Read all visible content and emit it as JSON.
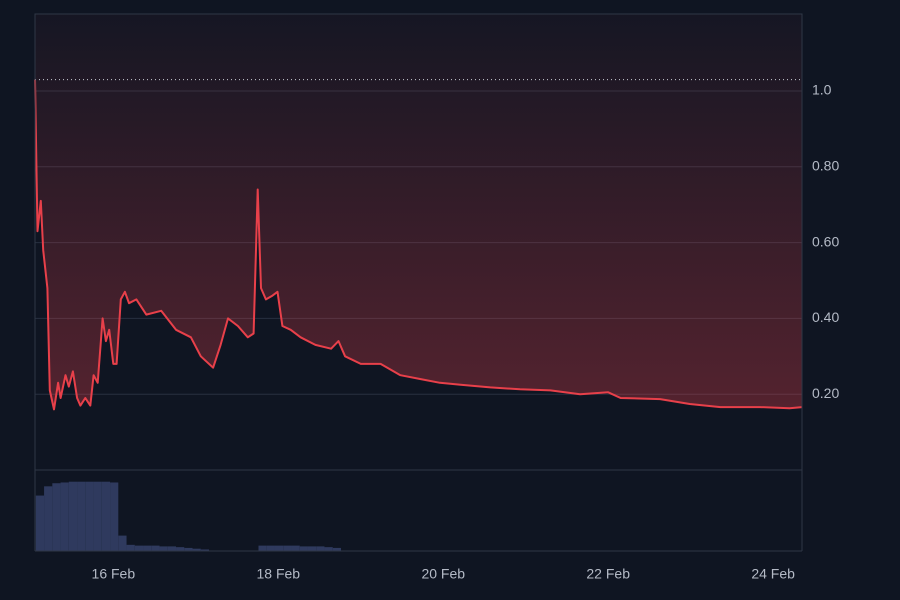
{
  "chart_data": {
    "type": "line",
    "x": [
      15.05,
      15.08,
      15.12,
      15.15,
      15.2,
      15.23,
      15.28,
      15.33,
      15.36,
      15.42,
      15.46,
      15.51,
      15.56,
      15.6,
      15.66,
      15.72,
      15.76,
      15.81,
      15.87,
      15.91,
      15.95,
      16.0,
      16.04,
      16.09,
      16.14,
      16.19,
      16.28,
      16.4,
      16.58,
      16.76,
      16.94,
      17.06,
      17.21,
      17.3,
      17.39,
      17.51,
      17.63,
      17.7,
      17.75,
      17.79,
      17.85,
      17.93,
      17.99,
      18.05,
      18.15,
      18.27,
      18.45,
      18.64,
      18.73,
      18.81,
      19.0,
      19.24,
      19.48,
      19.72,
      19.96,
      20.21,
      20.57,
      20.93,
      21.3,
      21.66,
      22.0,
      22.15,
      22.63,
      22.99,
      23.36,
      23.84,
      24.2,
      24.35
    ],
    "values": [
      1.03,
      0.63,
      0.71,
      0.58,
      0.48,
      0.21,
      0.16,
      0.23,
      0.19,
      0.25,
      0.22,
      0.26,
      0.19,
      0.17,
      0.19,
      0.17,
      0.25,
      0.23,
      0.4,
      0.34,
      0.37,
      0.28,
      0.28,
      0.45,
      0.47,
      0.44,
      0.45,
      0.41,
      0.42,
      0.37,
      0.35,
      0.3,
      0.27,
      0.33,
      0.4,
      0.38,
      0.35,
      0.36,
      0.74,
      0.48,
      0.45,
      0.46,
      0.47,
      0.38,
      0.37,
      0.35,
      0.33,
      0.32,
      0.34,
      0.3,
      0.28,
      0.28,
      0.25,
      0.24,
      0.23,
      0.225,
      0.218,
      0.213,
      0.21,
      0.2,
      0.205,
      0.19,
      0.187,
      0.174,
      0.166,
      0.166,
      0.163,
      0.166
    ],
    "color": "#e8404a",
    "xlim": [
      15.05,
      24.35
    ],
    "ylim": [
      0,
      1.203
    ],
    "xticks": [
      {
        "value": 16,
        "label": "16 Feb"
      },
      {
        "value": 18,
        "label": "18 Feb"
      },
      {
        "value": 20,
        "label": "20 Feb"
      },
      {
        "value": 22,
        "label": "22 Feb"
      },
      {
        "value": 24,
        "label": "24 Feb"
      }
    ],
    "yticks": [
      {
        "value": 0.2,
        "label": "0.20"
      },
      {
        "value": 0.4,
        "label": "0.40"
      },
      {
        "value": 0.6,
        "label": "0.60"
      },
      {
        "value": 0.8,
        "label": "0.80"
      },
      {
        "value": 1,
        "label": "1.0"
      }
    ],
    "grid": true,
    "price_line": 1.03,
    "volume": {
      "color": "#2f3a5e",
      "ylim": [
        0,
        100
      ],
      "x": [
        15.06,
        15.16,
        15.26,
        15.36,
        15.46,
        15.56,
        15.66,
        15.76,
        15.86,
        15.96,
        16.06,
        16.16,
        16.26,
        16.36,
        16.46,
        16.56,
        16.66,
        16.76,
        16.86,
        16.96,
        17.06,
        17.16,
        17.26,
        17.36,
        17.46,
        17.56,
        17.66,
        17.76,
        17.86,
        17.96,
        18.06,
        18.16,
        18.26,
        18.36,
        18.46,
        18.56,
        18.66,
        18.76
      ],
      "values": [
        72,
        84,
        88,
        89,
        90,
        90,
        90,
        90,
        90,
        89,
        20,
        8,
        7,
        7,
        7,
        6,
        6,
        5,
        4,
        3,
        2,
        0,
        0,
        0,
        0,
        0,
        0,
        7,
        7,
        7,
        7,
        7,
        6,
        6,
        6,
        5,
        4,
        0
      ]
    }
  }
}
